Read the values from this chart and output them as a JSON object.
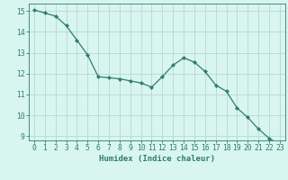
{
  "x": [
    0,
    1,
    2,
    3,
    4,
    5,
    6,
    7,
    8,
    9,
    10,
    11,
    12,
    13,
    14,
    15,
    16,
    17,
    18,
    19,
    20,
    21,
    22,
    23
  ],
  "y": [
    15.05,
    14.9,
    14.75,
    14.3,
    13.6,
    12.9,
    11.85,
    11.8,
    11.75,
    11.65,
    11.55,
    11.35,
    11.85,
    12.4,
    12.75,
    12.55,
    12.1,
    11.45,
    11.15,
    10.35,
    9.9,
    9.35,
    8.9,
    8.6
  ],
  "line_color": "#2e7d6e",
  "marker": "D",
  "marker_size": 2.2,
  "bg_color": "#d8f5f0",
  "grid_color": "#b8d8d2",
  "xlabel": "Humidex (Indice chaleur)",
  "ylim": [
    8.8,
    15.35
  ],
  "xlim": [
    -0.5,
    23.5
  ],
  "yticks": [
    9,
    10,
    11,
    12,
    13,
    14,
    15
  ],
  "xticks": [
    0,
    1,
    2,
    3,
    4,
    5,
    6,
    7,
    8,
    9,
    10,
    11,
    12,
    13,
    14,
    15,
    16,
    17,
    18,
    19,
    20,
    21,
    22,
    23
  ],
  "tick_color": "#2e7d6e",
  "label_fontsize": 6.5,
  "tick_fontsize": 5.8,
  "linewidth": 0.9
}
